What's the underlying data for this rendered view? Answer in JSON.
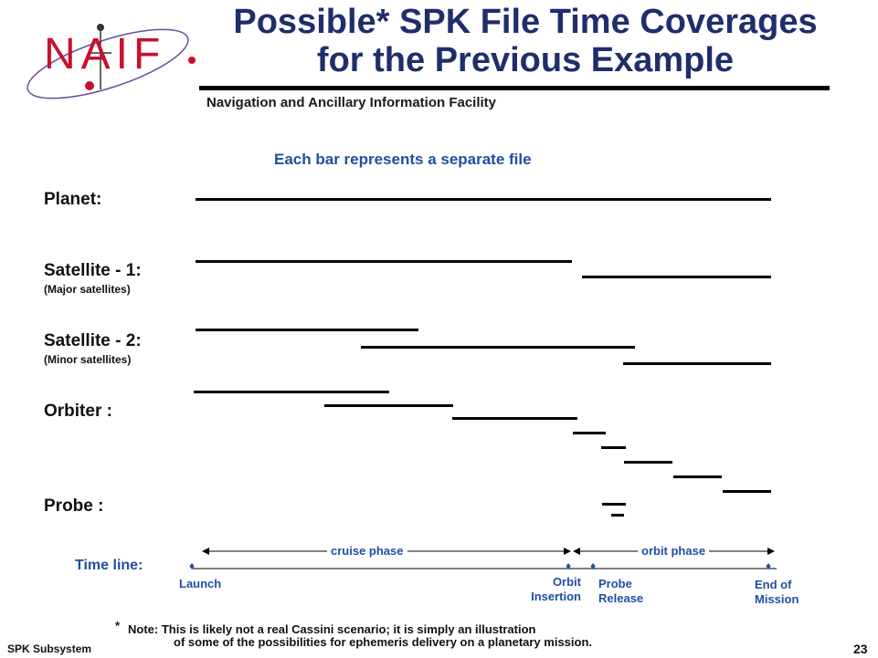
{
  "logo": {
    "text": "NAIF"
  },
  "header": {
    "title_line1": "Possible* SPK File Time Coverages",
    "title_line2": "for the Previous Example",
    "subtitle": "Navigation and Ancillary Information Facility"
  },
  "caption": "Each bar represents a separate file",
  "rows": {
    "planet": {
      "label": "Planet:"
    },
    "satellite1": {
      "label": "Satellite - 1:",
      "sublabel": "(Major satellites)"
    },
    "satellite2": {
      "label": "Satellite - 2:",
      "sublabel": "(Minor satellites)"
    },
    "orbiter": {
      "label": "Orbiter :"
    },
    "probe": {
      "label": "Probe :"
    }
  },
  "timeline": {
    "label": "Time line:",
    "cruise_phase": "cruise phase",
    "orbit_phase": "orbit phase",
    "launch": "Launch",
    "orbit_insertion_1": "Orbit",
    "orbit_insertion_2": "Insertion",
    "probe_release_1": "Probe",
    "probe_release_2": "Release",
    "end_mission_1": "End of",
    "end_mission_2": "Mission",
    "marker_glyph": "♦"
  },
  "note": {
    "star": "*",
    "line1": "Note: This is likely not a real Cassini scenario; it is simply an illustration",
    "line2": "of some of the possibilities for ephemeris delivery on a planetary mission."
  },
  "footer": {
    "left": "SPK Subsystem",
    "page": "23"
  },
  "colors": {
    "title": "#1f2e6b",
    "accent": "#1f4fa3",
    "logo": "#c8102e"
  }
}
